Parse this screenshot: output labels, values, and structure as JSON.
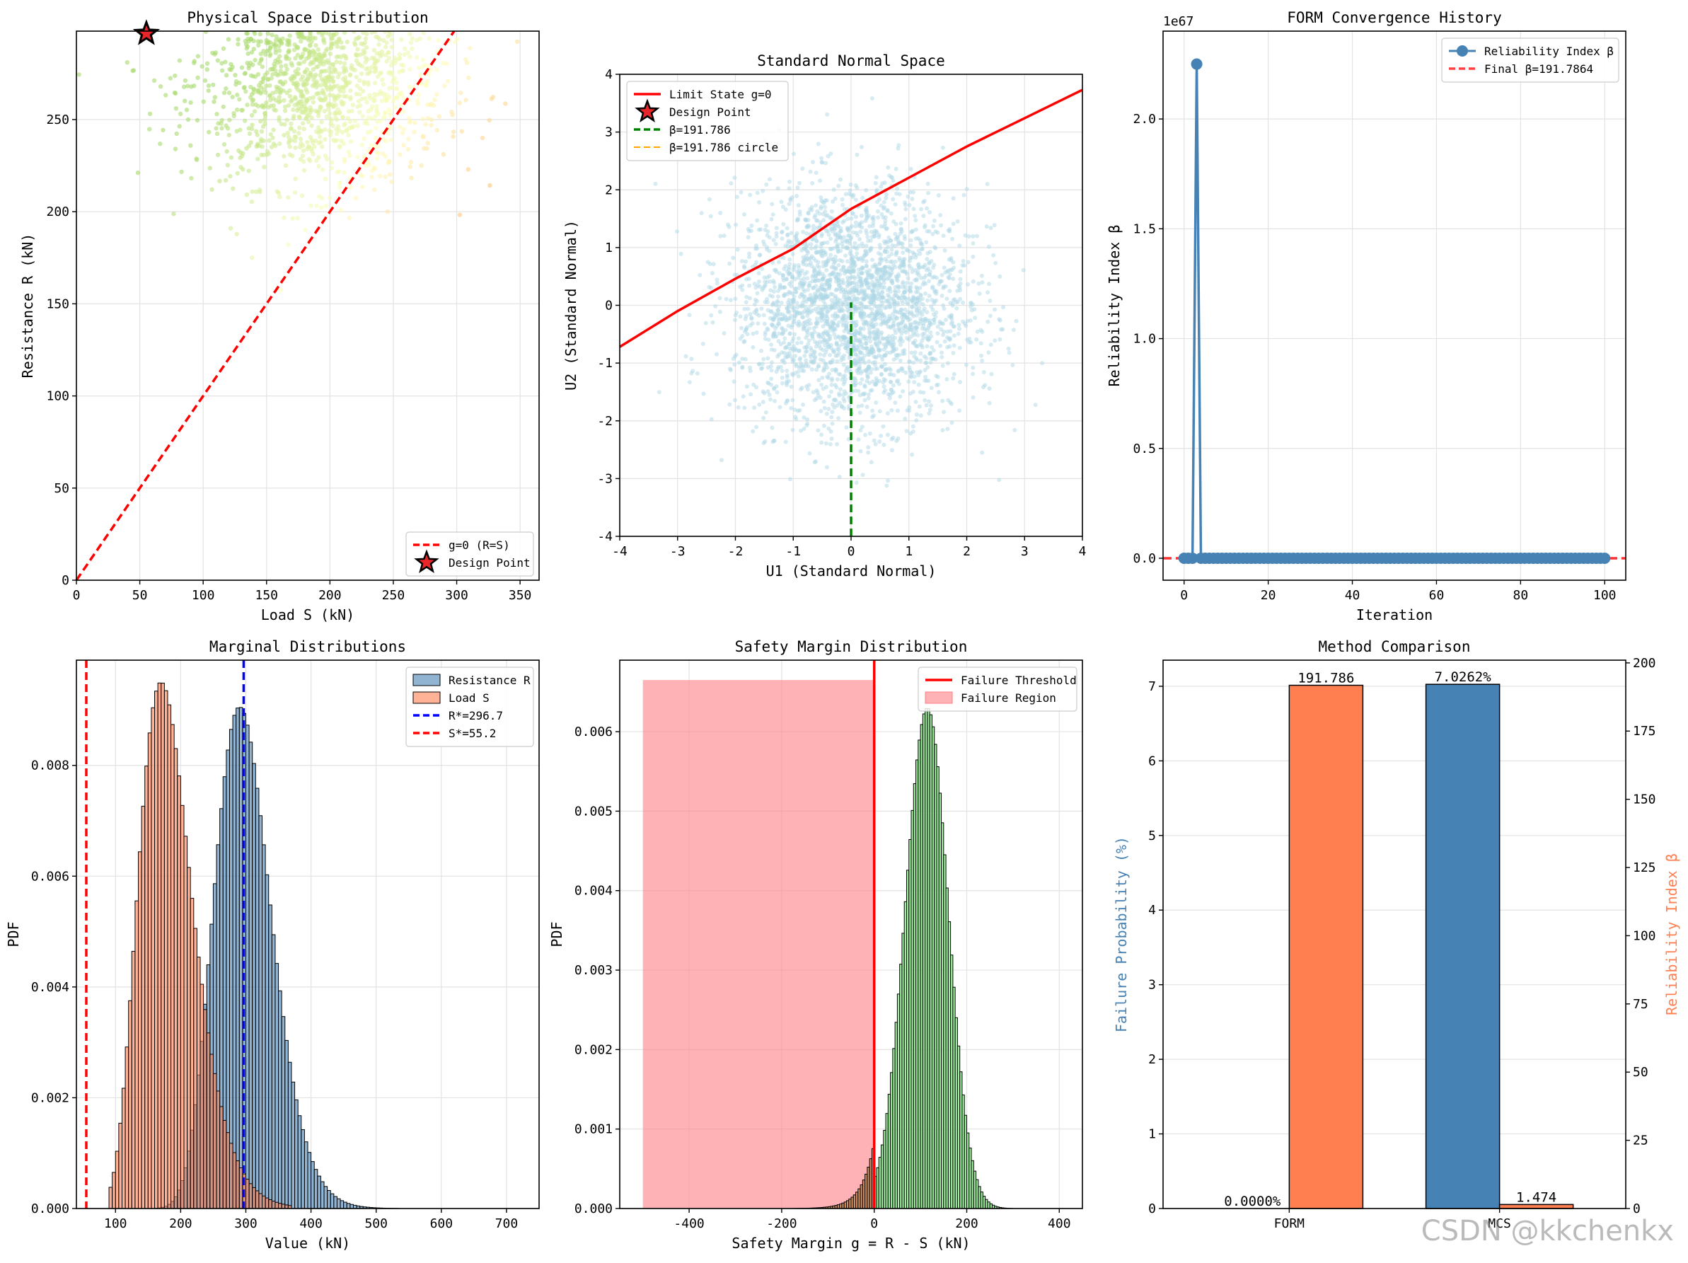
{
  "watermark": "CSDN @kkchenkx",
  "chart_data": [
    {
      "id": "p1",
      "type": "scatter",
      "title": "Physical Space Distribution",
      "xlabel": "Load S (kN)",
      "ylabel": "Resistance R (kN)",
      "xlim": [
        0,
        365
      ],
      "ylim": [
        0,
        298
      ],
      "xticks": [
        0,
        50,
        100,
        150,
        200,
        250,
        300,
        350
      ],
      "yticks": [
        0,
        50,
        100,
        150,
        200,
        250
      ],
      "limit_line": {
        "label": "g=0 (R=S)",
        "from": [
          0,
          0
        ],
        "to": [
          298,
          298
        ],
        "color": "#ff0000"
      },
      "design_point": {
        "label": "Design Point",
        "x": 55.2,
        "y": 296.7
      },
      "samples": {
        "n": 1400,
        "s_mean": 190,
        "s_sd": 50,
        "r_mean": 270,
        "r_sd": 28,
        "ycut": 298,
        "note": "Monte Carlo samples colored by g=R-S"
      },
      "legend": [
        "g=0 (R=S)",
        "Design Point"
      ],
      "legend_loc": "lower right"
    },
    {
      "id": "p2",
      "type": "scatter",
      "title": "Standard Normal Space",
      "xlabel": "U1 (Standard Normal)",
      "ylabel": "U2 (Standard Normal)",
      "xlim": [
        -4,
        4
      ],
      "ylim": [
        -4,
        4
      ],
      "xticks": [
        -4,
        -3,
        -2,
        -1,
        0,
        1,
        2,
        3,
        4
      ],
      "yticks": [
        -4,
        -3,
        -2,
        -1,
        0,
        1,
        2,
        3,
        4
      ],
      "limit_state": {
        "label": "Limit State g=0",
        "x": [
          -4,
          -3,
          -2,
          -1,
          0,
          1,
          2,
          3,
          4
        ],
        "y": [
          -0.72,
          -0.1,
          0.46,
          0.98,
          1.67,
          2.21,
          2.75,
          3.24,
          3.73
        ]
      },
      "beta_line": {
        "label": "β=191.786",
        "x": [
          0,
          0
        ],
        "y": [
          -4,
          0.05
        ]
      },
      "beta_circle_label": "β=191.786 circle",
      "design_point_label": "Design Point",
      "samples": {
        "n": 2800,
        "mean": [
          0,
          0
        ],
        "sd": 1
      },
      "legend": [
        "Limit State g=0",
        "Design Point",
        "β=191.786",
        "β=191.786 circle"
      ],
      "legend_loc": "upper left"
    },
    {
      "id": "p3",
      "type": "line",
      "title": "FORM Convergence History",
      "xlabel": "Iteration",
      "ylabel": "Reliability Index β",
      "xlim": [
        -5,
        105
      ],
      "ylim": [
        -0.1,
        2.4
      ],
      "y_scale_label": "1e67",
      "xticks": [
        0,
        20,
        40,
        60,
        80,
        100
      ],
      "yticks": [
        0.0,
        0.5,
        1.0,
        1.5,
        2.0
      ],
      "series": [
        {
          "name": "Reliability Index β",
          "x_range": [
            0,
            100
          ],
          "peak": {
            "x": 3,
            "y": 2.25
          },
          "other_y": 0
        }
      ],
      "final_line": {
        "label": "Final β=191.7864",
        "y": 0
      },
      "legend": [
        "Reliability Index β",
        "Final β=191.7864"
      ],
      "legend_loc": "upper right"
    },
    {
      "id": "p4",
      "type": "histogram",
      "title": "Marginal Distributions",
      "xlabel": "Value (kN)",
      "ylabel": "PDF",
      "xlim": [
        40,
        750
      ],
      "ylim": [
        0,
        0.0099
      ],
      "xticks": [
        100,
        200,
        300,
        400,
        500,
        600,
        700
      ],
      "yticks": [
        0.0,
        0.002,
        0.004,
        0.006,
        0.008
      ],
      "series": [
        {
          "name": "Resistance R",
          "dist": "lognormal",
          "median": 297,
          "sigma": 0.15,
          "bin_width": 5,
          "range": [
            160,
            560
          ],
          "color": "#4682b4"
        },
        {
          "name": "Load S",
          "dist": "lognormal",
          "median": 180,
          "sigma": 0.24,
          "bin_width": 5,
          "range": [
            90,
            370
          ],
          "color": "#ff7f50"
        }
      ],
      "vlines": [
        {
          "label": "R*=296.7",
          "x": 296.7,
          "color": "#0000ff"
        },
        {
          "label": "S*=55.2",
          "x": 55.2,
          "color": "#ff0000"
        }
      ],
      "legend": [
        "Resistance R",
        "Load S",
        "R*=296.7",
        "S*=55.2"
      ],
      "legend_loc": "upper right"
    },
    {
      "id": "p5",
      "type": "histogram",
      "title": "Safety Margin Distribution",
      "xlabel": "Safety Margin g = R - S (kN)",
      "ylabel": "PDF",
      "xlim": [
        -550,
        450
      ],
      "ylim": [
        0,
        0.0069
      ],
      "xticks": [
        -400,
        -200,
        0,
        200,
        400
      ],
      "yticks": [
        0.0,
        0.001,
        0.002,
        0.003,
        0.004,
        0.005,
        0.006
      ],
      "series": [
        {
          "name": "g",
          "dist": "skewed",
          "mode": 115,
          "right_sd": 45,
          "left_sd": 48,
          "peak": 0.0063,
          "bin_width": 5,
          "range": [
            -230,
            420
          ]
        }
      ],
      "threshold": {
        "label": "Failure Threshold",
        "x": 0
      },
      "failure_region": {
        "label": "Failure Region",
        "x": [
          -500,
          0
        ],
        "height": 0.00665
      },
      "legend": [
        "Failure Threshold",
        "Failure Region"
      ],
      "legend_loc": "upper right"
    },
    {
      "id": "p6",
      "type": "bar",
      "title": "Method Comparison",
      "categories": [
        "FORM",
        "MCS"
      ],
      "ylabel": "Failure Probability (%)",
      "ylabel_right": "Reliability Index β",
      "ylim": [
        0,
        7.35
      ],
      "ylim_right": [
        0,
        201
      ],
      "yticks": [
        0,
        1,
        2,
        3,
        4,
        5,
        6,
        7
      ],
      "yticks_right": [
        0,
        25,
        50,
        75,
        100,
        125,
        150,
        175,
        200
      ],
      "series": [
        {
          "name": "Failure Probability (%)",
          "axis": "left",
          "values": [
            0.0,
            7.0262
          ],
          "labels": [
            "0.0000%",
            "7.0262%"
          ],
          "color": "#4682b4"
        },
        {
          "name": "Reliability Index β",
          "axis": "right",
          "values": [
            191.786,
            1.474
          ],
          "labels": [
            "191.786",
            "1.474"
          ],
          "color": "#ff7f50"
        }
      ]
    }
  ]
}
